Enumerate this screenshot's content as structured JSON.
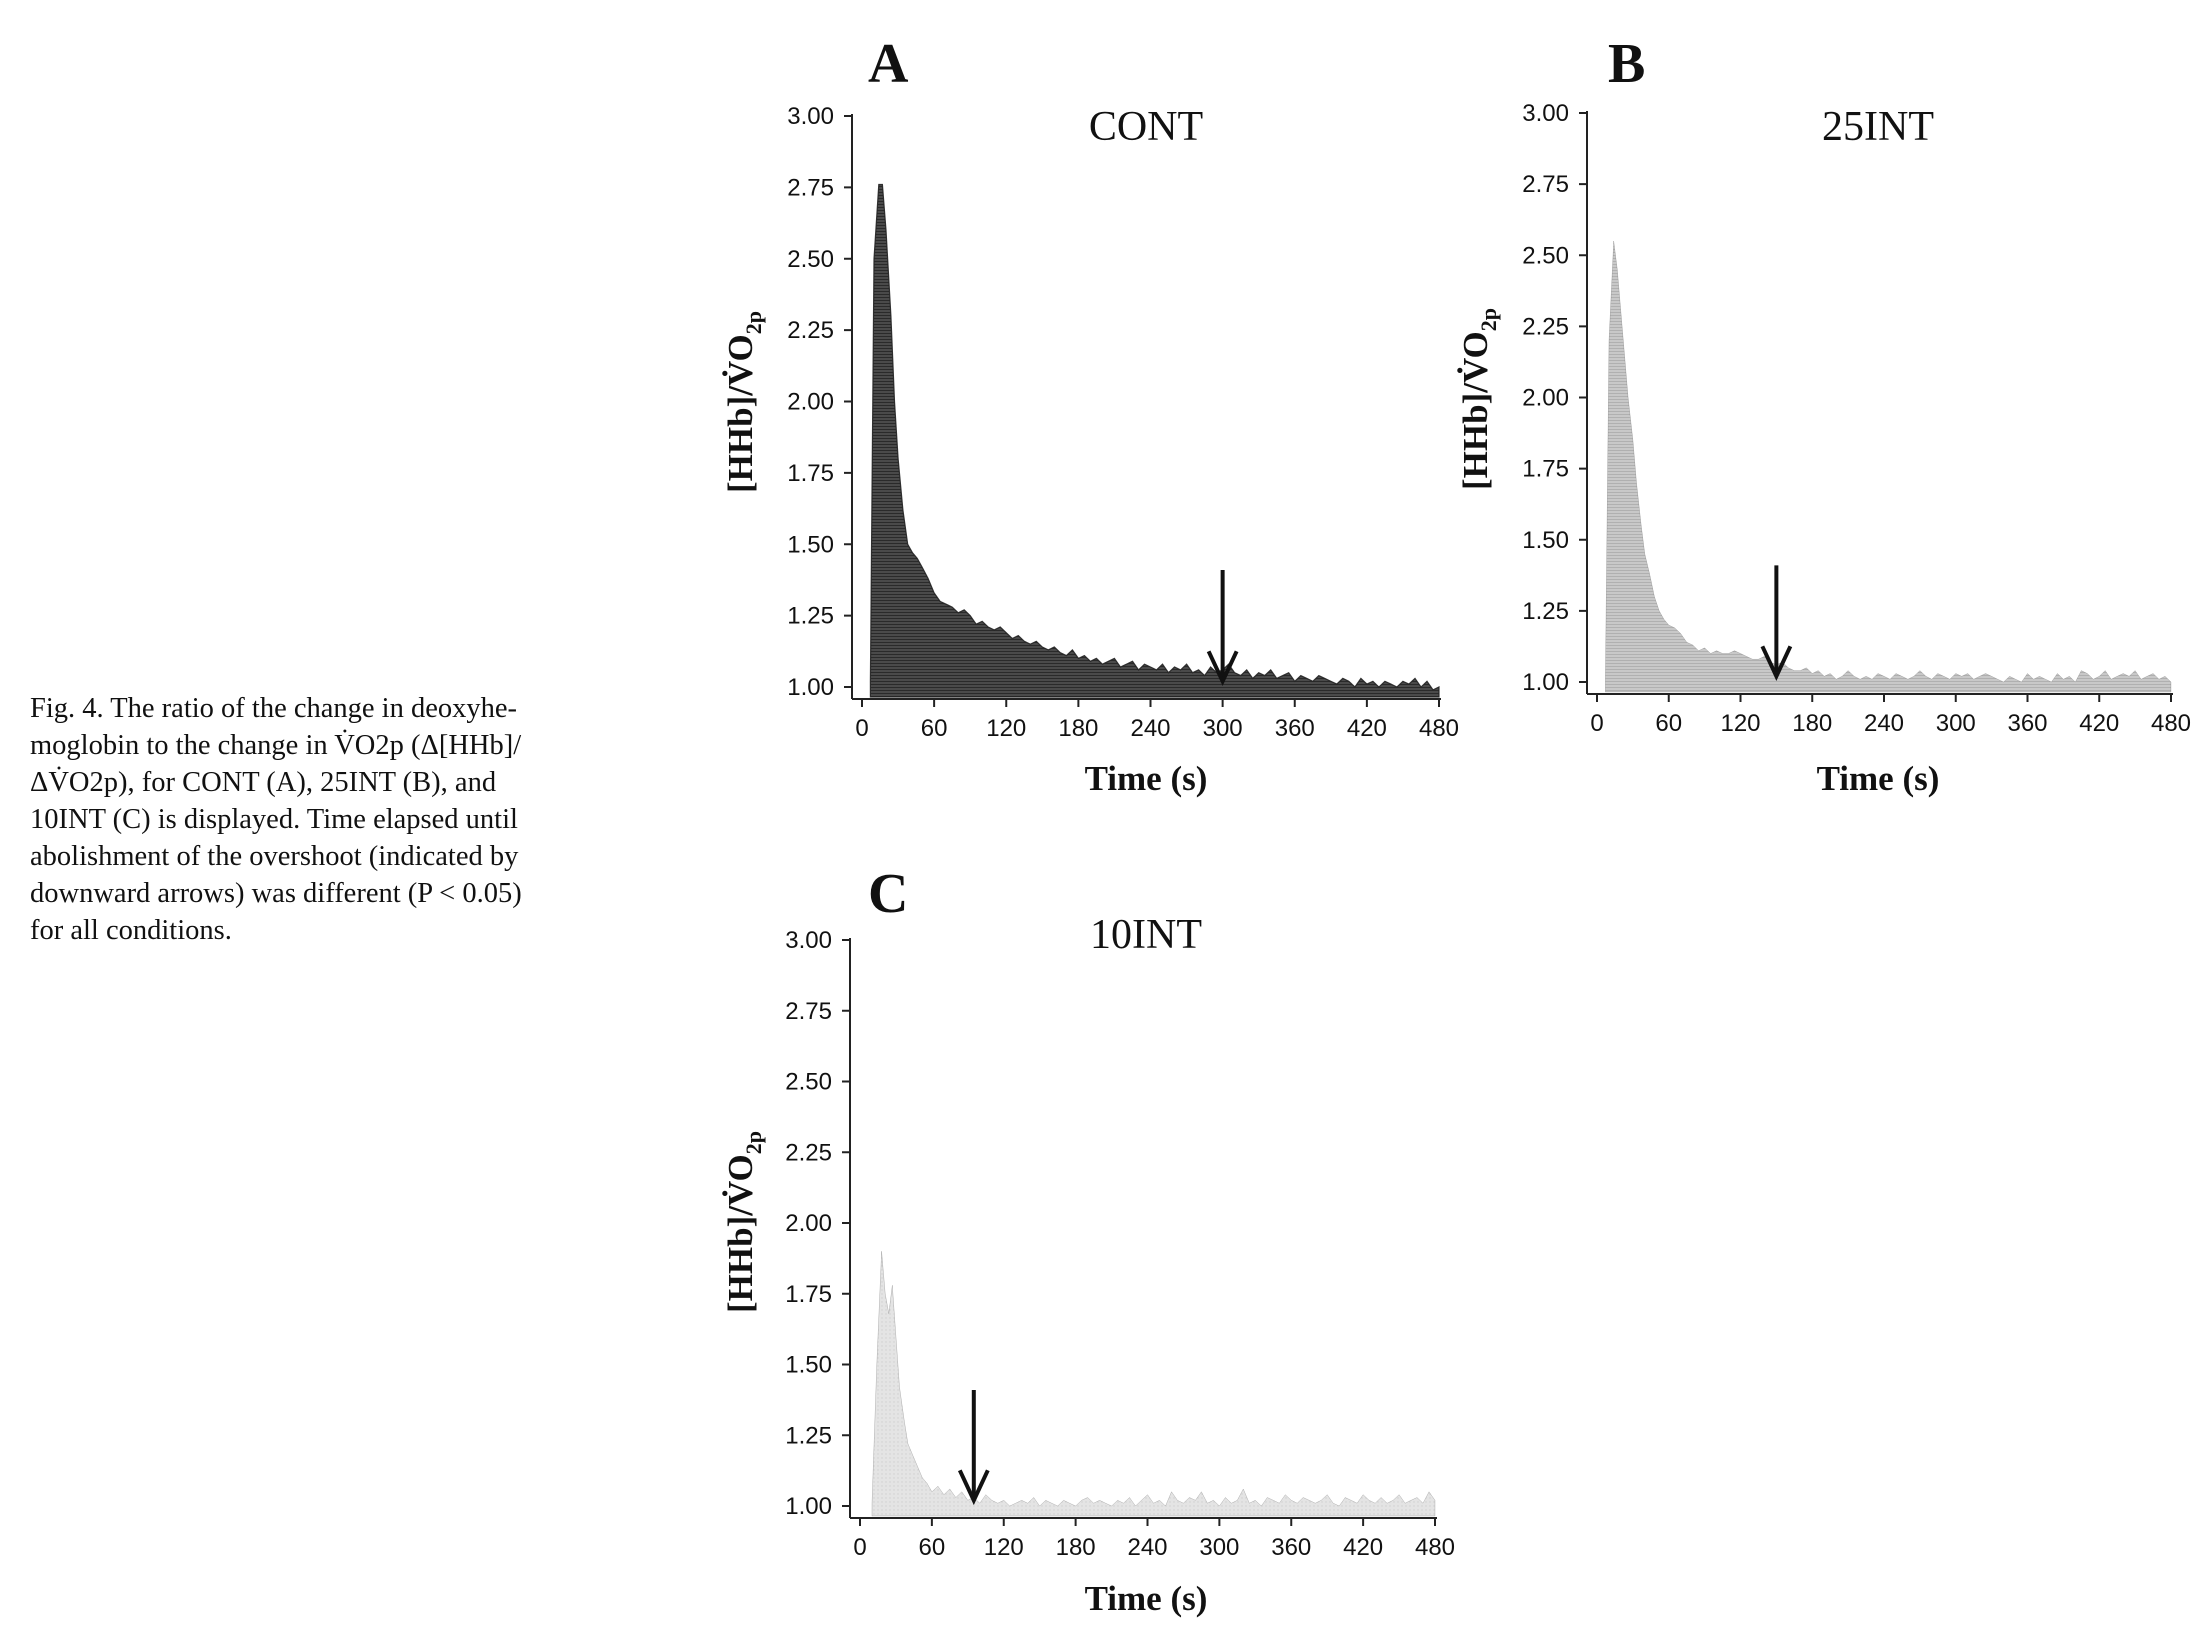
{
  "caption_lines": [
    "Fig. 4. The ratio of the change in deoxyhe-",
    "moglobin to the change in V̇O2p (Δ[HHb]/",
    "ΔV̇O2p), for CONT (A), 25INT (B), and",
    "10INT (C) is displayed. Time elapsed until",
    "abolishment of the overshoot (indicated by",
    "downward arrows) was different (P < 0.05)",
    "for all conditions."
  ],
  "colors": {
    "cont": "#4a4a4a",
    "int25": "#c6c6c6",
    "int10": "#e3e3e3",
    "axis": "#222222"
  },
  "chart_data": [
    {
      "panel": "A",
      "type": "area",
      "title": "CONT",
      "xlabel": "Time (s)",
      "ylabel": "[HHb]/V̇O2p",
      "xlim": [
        0,
        480
      ],
      "ylim": [
        1.0,
        3.0
      ],
      "xticks": [
        "0",
        "60",
        "120",
        "180",
        "240",
        "300",
        "360",
        "420",
        "480"
      ],
      "yticks": [
        "1.00",
        "1.25",
        "1.50",
        "1.75",
        "2.00",
        "2.25",
        "2.50",
        "2.75",
        "3.00"
      ],
      "arrow_x": 300,
      "x": [
        7,
        10,
        14,
        17,
        20,
        24,
        27,
        30,
        34,
        38,
        42,
        46,
        50,
        55,
        60,
        65,
        70,
        75,
        80,
        85,
        90,
        95,
        100,
        105,
        110,
        115,
        120,
        125,
        130,
        135,
        140,
        145,
        150,
        155,
        160,
        165,
        170,
        175,
        180,
        185,
        190,
        195,
        200,
        205,
        210,
        215,
        220,
        225,
        230,
        235,
        240,
        245,
        250,
        255,
        260,
        265,
        270,
        275,
        280,
        285,
        290,
        295,
        300,
        305,
        310,
        315,
        320,
        325,
        330,
        335,
        340,
        345,
        350,
        355,
        360,
        365,
        370,
        375,
        380,
        385,
        390,
        395,
        400,
        405,
        410,
        415,
        420,
        425,
        430,
        435,
        440,
        445,
        450,
        455,
        460,
        465,
        470,
        475,
        480
      ],
      "values": [
        1.02,
        2.5,
        2.76,
        2.76,
        2.6,
        2.3,
        2.0,
        1.8,
        1.62,
        1.5,
        1.47,
        1.45,
        1.42,
        1.38,
        1.33,
        1.3,
        1.29,
        1.28,
        1.26,
        1.27,
        1.25,
        1.22,
        1.23,
        1.21,
        1.2,
        1.21,
        1.19,
        1.17,
        1.18,
        1.16,
        1.15,
        1.16,
        1.14,
        1.13,
        1.14,
        1.12,
        1.11,
        1.13,
        1.1,
        1.11,
        1.09,
        1.1,
        1.08,
        1.09,
        1.1,
        1.07,
        1.08,
        1.09,
        1.06,
        1.08,
        1.07,
        1.06,
        1.08,
        1.05,
        1.07,
        1.06,
        1.08,
        1.05,
        1.06,
        1.04,
        1.07,
        1.05,
        1.06,
        1.08,
        1.05,
        1.04,
        1.06,
        1.03,
        1.05,
        1.04,
        1.06,
        1.03,
        1.04,
        1.05,
        1.02,
        1.04,
        1.03,
        1.02,
        1.04,
        1.03,
        1.02,
        1.01,
        1.03,
        1.02,
        1.0,
        1.03,
        1.01,
        1.02,
        1.0,
        1.02,
        1.01,
        1.0,
        1.02,
        1.01,
        1.03,
        1.0,
        1.02,
        0.99,
        1.0
      ]
    },
    {
      "panel": "B",
      "type": "area",
      "title": "25INT",
      "xlabel": "Time (s)",
      "ylabel": "[HHb]/V̇O2p",
      "xlim": [
        0,
        480
      ],
      "ylim": [
        1.0,
        3.0
      ],
      "xticks": [
        "0",
        "60",
        "120",
        "180",
        "240",
        "300",
        "360",
        "420",
        "480"
      ],
      "yticks": [
        "1.00",
        "1.25",
        "1.50",
        "1.75",
        "2.00",
        "2.25",
        "2.50",
        "2.75",
        "3.00"
      ],
      "arrow_x": 150,
      "x": [
        7,
        10,
        14,
        17,
        20,
        23,
        26,
        30,
        33,
        37,
        40,
        44,
        48,
        52,
        56,
        60,
        65,
        70,
        75,
        80,
        85,
        90,
        95,
        100,
        105,
        110,
        115,
        120,
        125,
        130,
        135,
        140,
        145,
        150,
        155,
        160,
        165,
        170,
        175,
        180,
        185,
        190,
        195,
        200,
        205,
        210,
        215,
        220,
        225,
        230,
        235,
        240,
        245,
        250,
        255,
        260,
        265,
        270,
        275,
        280,
        285,
        290,
        295,
        300,
        305,
        310,
        315,
        320,
        325,
        330,
        335,
        340,
        345,
        350,
        355,
        360,
        365,
        370,
        375,
        380,
        385,
        390,
        395,
        400,
        405,
        410,
        415,
        420,
        425,
        430,
        435,
        440,
        445,
        450,
        455,
        460,
        465,
        470,
        475,
        480
      ],
      "values": [
        1.02,
        2.2,
        2.55,
        2.45,
        2.3,
        2.15,
        2.0,
        1.85,
        1.7,
        1.55,
        1.45,
        1.38,
        1.3,
        1.25,
        1.22,
        1.2,
        1.19,
        1.17,
        1.14,
        1.13,
        1.11,
        1.12,
        1.1,
        1.11,
        1.1,
        1.1,
        1.11,
        1.1,
        1.09,
        1.08,
        1.08,
        1.09,
        1.07,
        1.06,
        1.07,
        1.05,
        1.04,
        1.04,
        1.05,
        1.03,
        1.04,
        1.02,
        1.03,
        1.01,
        1.02,
        1.04,
        1.02,
        1.01,
        1.02,
        1.01,
        1.03,
        1.02,
        1.01,
        1.03,
        1.02,
        1.01,
        1.02,
        1.04,
        1.02,
        1.01,
        1.03,
        1.02,
        1.01,
        1.03,
        1.02,
        1.03,
        1.01,
        1.02,
        1.03,
        1.02,
        1.01,
        1.0,
        1.02,
        1.01,
        1.0,
        1.03,
        1.01,
        1.02,
        1.01,
        1.0,
        1.03,
        1.01,
        1.02,
        1.0,
        1.04,
        1.03,
        1.01,
        1.02,
        1.04,
        1.01,
        1.02,
        1.03,
        1.02,
        1.04,
        1.01,
        1.02,
        1.03,
        1.01,
        1.02,
        1.0
      ]
    },
    {
      "panel": "C",
      "type": "area",
      "title": "10INT",
      "xlabel": "Time (s)",
      "ylabel": "[HHb]/V̇O2p",
      "xlim": [
        0,
        480
      ],
      "ylim": [
        1.0,
        3.0
      ],
      "xticks": [
        "0",
        "60",
        "120",
        "180",
        "240",
        "300",
        "360",
        "420",
        "480"
      ],
      "yticks": [
        "1.00",
        "1.25",
        "1.50",
        "1.75",
        "2.00",
        "2.25",
        "2.50",
        "2.75",
        "3.00"
      ],
      "arrow_x": 95,
      "x": [
        10,
        14,
        18,
        21,
        24,
        27,
        30,
        33,
        37,
        40,
        44,
        48,
        52,
        56,
        60,
        65,
        70,
        75,
        80,
        85,
        90,
        95,
        100,
        105,
        110,
        115,
        120,
        125,
        130,
        135,
        140,
        145,
        150,
        155,
        160,
        165,
        170,
        175,
        180,
        185,
        190,
        195,
        200,
        205,
        210,
        215,
        220,
        225,
        230,
        235,
        240,
        245,
        250,
        255,
        260,
        265,
        270,
        275,
        280,
        285,
        290,
        295,
        300,
        305,
        310,
        315,
        320,
        325,
        330,
        335,
        340,
        345,
        350,
        355,
        360,
        365,
        370,
        375,
        380,
        385,
        390,
        395,
        400,
        405,
        410,
        415,
        420,
        425,
        430,
        435,
        440,
        445,
        450,
        455,
        460,
        465,
        470,
        475,
        480
      ],
      "values": [
        1.01,
        1.5,
        1.9,
        1.75,
        1.68,
        1.78,
        1.6,
        1.42,
        1.3,
        1.22,
        1.18,
        1.14,
        1.1,
        1.08,
        1.05,
        1.07,
        1.04,
        1.06,
        1.03,
        1.05,
        1.02,
        1.03,
        1.01,
        1.04,
        1.02,
        1.01,
        1.02,
        1.0,
        1.01,
        1.02,
        1.01,
        1.03,
        1.0,
        1.02,
        1.01,
        1.0,
        1.02,
        1.01,
        1.0,
        1.02,
        1.03,
        1.01,
        1.02,
        1.01,
        1.0,
        1.02,
        1.01,
        1.03,
        1.0,
        1.02,
        1.04,
        1.01,
        1.02,
        1.0,
        1.05,
        1.02,
        1.01,
        1.03,
        1.02,
        1.05,
        1.01,
        1.02,
        1.0,
        1.03,
        1.01,
        1.02,
        1.06,
        1.01,
        1.02,
        1.0,
        1.03,
        1.02,
        1.01,
        1.04,
        1.02,
        1.01,
        1.03,
        1.02,
        1.01,
        1.02,
        1.04,
        1.01,
        1.0,
        1.03,
        1.02,
        1.01,
        1.04,
        1.02,
        1.01,
        1.03,
        1.01,
        1.02,
        1.04,
        1.01,
        1.02,
        1.03,
        1.01,
        1.05,
        1.02
      ]
    }
  ]
}
